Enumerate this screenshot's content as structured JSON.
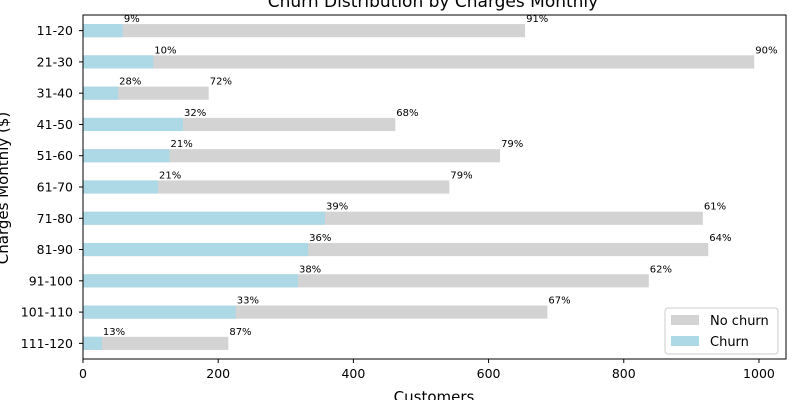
{
  "chart_data": {
    "type": "bar",
    "orientation": "horizontal",
    "stacked": true,
    "title": "Churn Distribution by Charges Monthly",
    "xlabel": "Customers",
    "ylabel": "Charges Monthly ($)",
    "xlim": [
      0,
      1040
    ],
    "xticks": [
      0,
      200,
      400,
      600,
      800,
      1000
    ],
    "categories": [
      "11-20",
      "21-30",
      "31-40",
      "41-50",
      "51-60",
      "61-70",
      "71-80",
      "81-90",
      "91-100",
      "101-110",
      "111-120"
    ],
    "series": [
      {
        "name": "No churn",
        "color": "#d3d3d3",
        "totals": [
          654,
          993,
          186,
          462,
          617,
          542,
          917,
          925,
          837,
          687,
          215
        ],
        "labels": [
          "91%",
          "90%",
          "72%",
          "68%",
          "79%",
          "79%",
          "61%",
          "64%",
          "62%",
          "67%",
          "87%"
        ]
      },
      {
        "name": "Churn",
        "color": "#add8e6",
        "values": [
          59,
          104,
          52,
          148,
          128,
          111,
          358,
          333,
          318,
          226,
          28
        ],
        "labels": [
          "9%",
          "10%",
          "28%",
          "32%",
          "21%",
          "21%",
          "39%",
          "36%",
          "38%",
          "33%",
          "13%"
        ]
      }
    ],
    "grid": false,
    "legend_position": "bottom-right"
  }
}
